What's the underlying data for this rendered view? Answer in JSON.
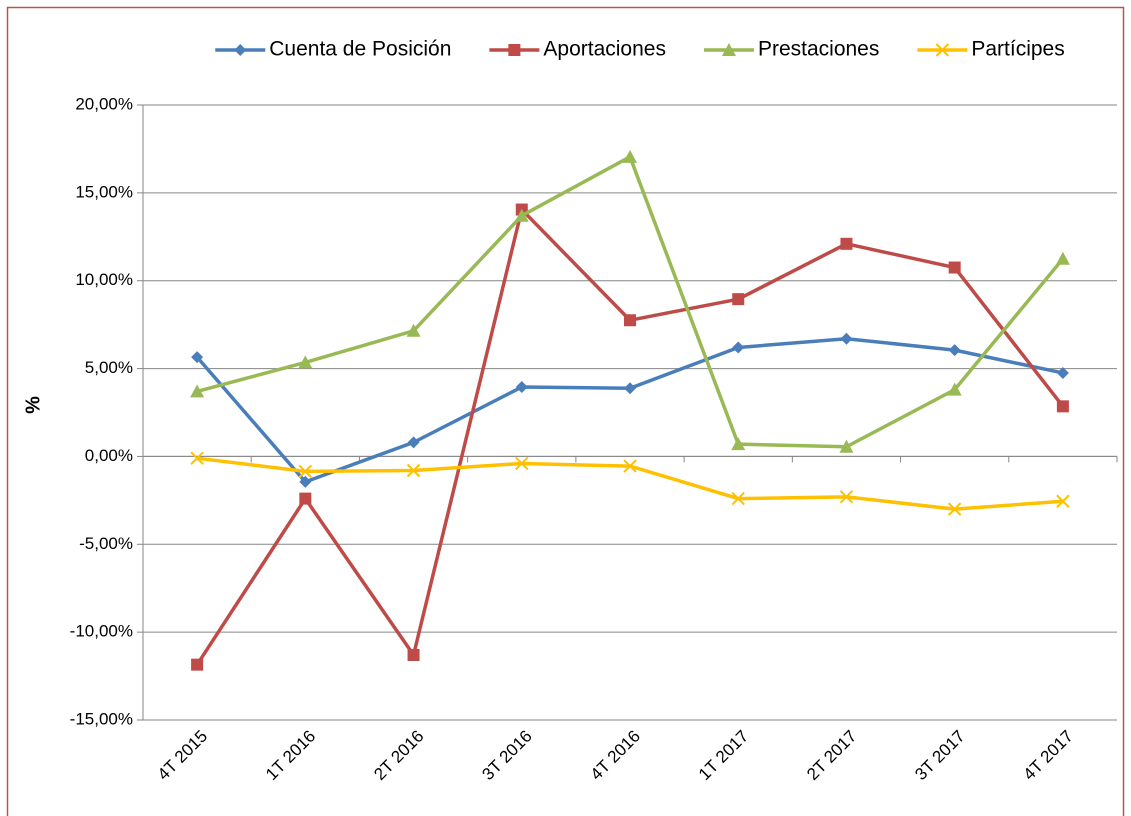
{
  "chart_data": {
    "type": "line",
    "categories": [
      "4T 2015",
      "1T 2016",
      "2T 2016",
      "3T 2016",
      "4T 2016",
      "1T 2017",
      "2T 2017",
      "3T 2017",
      "4T 2017"
    ],
    "series": [
      {
        "name": "Cuenta de Posición",
        "color": "#4a7ebb",
        "marker": "diamond",
        "values": [
          5.65,
          -1.45,
          0.8,
          3.95,
          3.88,
          6.2,
          6.7,
          6.05,
          4.75
        ]
      },
      {
        "name": "Aportaciones",
        "color": "#be4b48",
        "marker": "square",
        "values": [
          -11.85,
          -2.4,
          -11.3,
          14.05,
          7.75,
          8.95,
          12.1,
          10.75,
          2.85
        ]
      },
      {
        "name": "Prestaciones",
        "color": "#98b954",
        "marker": "triangle",
        "values": [
          3.7,
          5.35,
          7.15,
          13.7,
          17.05,
          0.7,
          0.55,
          3.8,
          11.25
        ]
      },
      {
        "name": "Partícipes",
        "color": "#ffc000",
        "marker": "x",
        "values": [
          -0.1,
          -0.85,
          -0.8,
          -0.4,
          -0.55,
          -2.4,
          -2.3,
          -3.0,
          -2.55
        ]
      }
    ],
    "ylabel": "%",
    "ylim": [
      -15,
      20
    ],
    "yticks": [
      {
        "value": -15,
        "label": "-15,00%"
      },
      {
        "value": -10,
        "label": "-10,00%"
      },
      {
        "value": -5,
        "label": "-5,00%"
      },
      {
        "value": 0,
        "label": "0,00%"
      },
      {
        "value": 5,
        "label": "5,00%"
      },
      {
        "value": 10,
        "label": "10,00%"
      },
      {
        "value": 15,
        "label": "15,00%"
      },
      {
        "value": 20,
        "label": "20,00%"
      }
    ],
    "grid": true,
    "legend": "top"
  }
}
